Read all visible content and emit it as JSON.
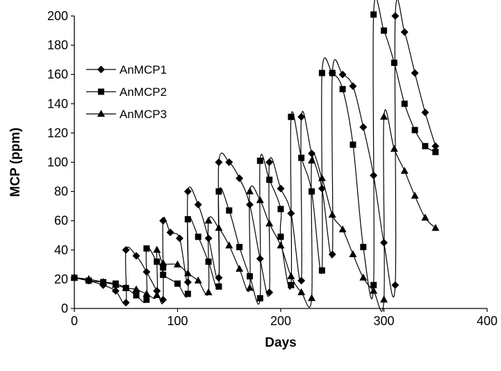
{
  "chart_data": {
    "type": "line",
    "title": "",
    "xlabel": "Days",
    "ylabel": "MCP (ppm)",
    "xlim": [
      0,
      400
    ],
    "ylim": [
      0,
      200
    ],
    "x_ticks": [
      0,
      100,
      200,
      300,
      400
    ],
    "y_ticks": [
      0,
      20,
      40,
      60,
      80,
      100,
      120,
      140,
      160,
      180,
      200
    ],
    "grid": false,
    "legend_position": "left",
    "series": [
      {
        "name": "AnMCP1",
        "marker": "diamond",
        "points": [
          [
            0,
            21
          ],
          [
            14,
            19
          ],
          [
            28,
            16
          ],
          [
            40,
            12
          ],
          [
            50,
            4
          ],
          [
            50,
            40
          ],
          [
            60,
            36
          ],
          [
            70,
            25
          ],
          [
            80,
            12
          ],
          [
            86,
            6
          ],
          [
            86,
            60
          ],
          [
            93,
            52
          ],
          [
            102,
            48
          ],
          [
            110,
            18
          ],
          [
            110,
            80
          ],
          [
            120,
            71
          ],
          [
            130,
            48
          ],
          [
            140,
            21
          ],
          [
            140,
            100
          ],
          [
            150,
            100
          ],
          [
            160,
            89
          ],
          [
            170,
            71
          ],
          [
            180,
            34
          ],
          [
            189,
            11
          ],
          [
            189,
            100
          ],
          [
            200,
            82
          ],
          [
            210,
            65
          ],
          [
            220,
            19
          ],
          [
            220,
            131
          ],
          [
            230,
            106
          ],
          [
            240,
            82
          ],
          [
            250,
            37
          ],
          [
            250,
            161
          ],
          [
            260,
            160
          ],
          [
            270,
            152
          ],
          [
            280,
            124
          ],
          [
            290,
            91
          ],
          [
            300,
            45
          ],
          [
            311,
            16
          ],
          [
            311,
            200
          ],
          [
            320,
            189
          ],
          [
            330,
            161
          ],
          [
            340,
            134
          ],
          [
            350,
            111
          ]
        ]
      },
      {
        "name": "AnMCP2",
        "marker": "square",
        "points": [
          [
            0,
            21
          ],
          [
            14,
            19
          ],
          [
            28,
            18
          ],
          [
            40,
            17
          ],
          [
            50,
            14
          ],
          [
            60,
            9
          ],
          [
            70,
            6
          ],
          [
            70,
            41
          ],
          [
            80,
            32
          ],
          [
            86,
            28
          ],
          [
            86,
            23
          ],
          [
            100,
            17
          ],
          [
            110,
            10
          ],
          [
            110,
            61
          ],
          [
            120,
            49
          ],
          [
            130,
            32
          ],
          [
            140,
            15
          ],
          [
            140,
            80
          ],
          [
            150,
            67
          ],
          [
            160,
            42
          ],
          [
            170,
            22
          ],
          [
            180,
            7
          ],
          [
            180,
            101
          ],
          [
            189,
            88
          ],
          [
            200,
            68
          ],
          [
            200,
            49
          ],
          [
            210,
            16
          ],
          [
            210,
            131
          ],
          [
            220,
            103
          ],
          [
            230,
            80
          ],
          [
            240,
            26
          ],
          [
            240,
            161
          ],
          [
            250,
            161
          ],
          [
            260,
            150
          ],
          [
            270,
            112
          ],
          [
            280,
            42
          ],
          [
            290,
            16
          ],
          [
            290,
            201
          ],
          [
            300,
            190
          ],
          [
            310,
            168
          ],
          [
            320,
            140
          ],
          [
            330,
            122
          ],
          [
            340,
            111
          ],
          [
            350,
            107
          ]
        ]
      },
      {
        "name": "AnMCP3",
        "marker": "triangle",
        "points": [
          [
            0,
            21
          ],
          [
            14,
            20
          ],
          [
            28,
            18
          ],
          [
            40,
            16
          ],
          [
            50,
            14
          ],
          [
            60,
            13
          ],
          [
            70,
            10
          ],
          [
            80,
            9
          ],
          [
            80,
            40
          ],
          [
            86,
            31
          ],
          [
            100,
            30
          ],
          [
            110,
            24
          ],
          [
            120,
            19
          ],
          [
            130,
            11
          ],
          [
            130,
            60
          ],
          [
            140,
            55
          ],
          [
            150,
            43
          ],
          [
            160,
            27
          ],
          [
            170,
            14
          ],
          [
            170,
            80
          ],
          [
            180,
            74
          ],
          [
            189,
            58
          ],
          [
            200,
            43
          ],
          [
            210,
            22
          ],
          [
            220,
            11
          ],
          [
            230,
            7
          ],
          [
            230,
            101
          ],
          [
            240,
            89
          ],
          [
            250,
            64
          ],
          [
            260,
            54
          ],
          [
            270,
            37
          ],
          [
            280,
            21
          ],
          [
            290,
            12
          ],
          [
            300,
            6
          ],
          [
            300,
            131
          ],
          [
            310,
            109
          ],
          [
            320,
            94
          ],
          [
            330,
            77
          ],
          [
            340,
            62
          ],
          [
            350,
            55
          ]
        ]
      }
    ]
  }
}
